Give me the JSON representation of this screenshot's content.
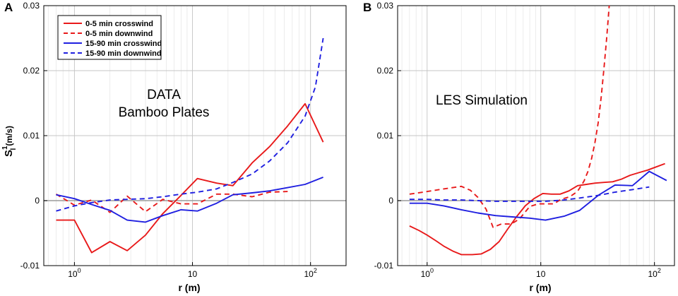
{
  "chart_data": [
    {
      "type": "line",
      "panel": "A",
      "xscale": "log",
      "xlim": [
        0.55,
        200
      ],
      "ylim": [
        -0.01,
        0.03
      ],
      "xlabel": "r (m)",
      "ylabel": "S",
      "ylabel_sup": "1",
      "ylabel_sub": "l",
      "ylabel_unit": "(m/s)",
      "xticks": [
        {
          "value": 1,
          "base": "10",
          "exp": "0"
        },
        {
          "value": 10,
          "label": "10"
        },
        {
          "value": 100,
          "base": "10",
          "exp": "2"
        }
      ],
      "yticks": [
        {
          "value": -0.01,
          "label": "-0.01"
        },
        {
          "value": 0,
          "label": "0"
        },
        {
          "value": 0.01,
          "label": "0.01"
        },
        {
          "value": 0.02,
          "label": "0.02"
        },
        {
          "value": 0.03,
          "label": "0.03"
        }
      ],
      "grid": true,
      "legend_position": "top-left",
      "annotations": [
        "DATA",
        "Bamboo Plates"
      ],
      "series": [
        {
          "name": "0-5 min crosswind",
          "color": "#e8191a",
          "dash": false,
          "x": [
            0.7,
            1.0,
            1.4,
            2.0,
            2.8,
            4.0,
            5.6,
            8.0,
            11.0,
            16.0,
            22.0,
            32.0,
            45.0,
            64.0,
            90.0,
            128.0
          ],
          "y": [
            -0.003,
            -0.003,
            -0.008,
            -0.0063,
            -0.0077,
            -0.0053,
            -0.002,
            0.0008,
            0.0034,
            0.0027,
            0.0023,
            0.0058,
            0.0083,
            0.0115,
            0.0149,
            0.009
          ]
        },
        {
          "name": "0-5 min downwind",
          "color": "#e8191a",
          "dash": true,
          "x": [
            0.7,
            1.0,
            1.4,
            2.0,
            2.8,
            4.0,
            5.6,
            8.0,
            11.0,
            16.0,
            22.0,
            32.0,
            45.0,
            64.0
          ],
          "y": [
            0.001,
            -0.0007,
            0.0001,
            -0.0018,
            0.0007,
            -0.0017,
            0.0002,
            -0.0005,
            -0.0005,
            0.001,
            0.001,
            0.0006,
            0.0013,
            0.0014
          ]
        },
        {
          "name": "15-90 min crosswind",
          "color": "#1f1fe0",
          "dash": false,
          "x": [
            0.7,
            1.0,
            1.4,
            2.0,
            2.8,
            4.0,
            5.6,
            8.0,
            11.0,
            16.0,
            22.0,
            32.0,
            45.0,
            64.0,
            90.0,
            128.0
          ],
          "y": [
            0.0009,
            0.0003,
            -0.0006,
            -0.0015,
            -0.003,
            -0.0033,
            -0.0023,
            -0.0014,
            -0.0016,
            -0.0004,
            0.0009,
            0.0012,
            0.0015,
            0.002,
            0.0025,
            0.0036
          ]
        },
        {
          "name": "15-90 min downwind",
          "color": "#1f1fe0",
          "dash": true,
          "x": [
            0.7,
            1.0,
            1.4,
            2.0,
            2.8,
            4.0,
            5.6,
            8.0,
            11.0,
            16.0,
            22.0,
            32.0,
            45.0,
            64.0,
            90.0,
            110.0,
            128.0
          ],
          "y": [
            -0.0016,
            -0.0008,
            -0.0003,
            0.0001,
            0.0002,
            0.0003,
            0.0006,
            0.001,
            0.0013,
            0.0018,
            0.0028,
            0.0041,
            0.0061,
            0.0089,
            0.013,
            0.0175,
            0.025
          ]
        }
      ]
    },
    {
      "type": "line",
      "panel": "B",
      "xscale": "log",
      "xlim": [
        0.55,
        150
      ],
      "ylim": [
        -0.01,
        0.03
      ],
      "xlabel": "r (m)",
      "ylabel": "",
      "xticks": [
        {
          "value": 1,
          "base": "10",
          "exp": "0"
        },
        {
          "value": 10,
          "label": "10"
        },
        {
          "value": 100,
          "base": "10",
          "exp": "2"
        }
      ],
      "yticks": [
        {
          "value": -0.01,
          "label": "-0.01"
        },
        {
          "value": 0,
          "label": "0"
        },
        {
          "value": 0.01,
          "label": "0.01"
        },
        {
          "value": 0.02,
          "label": "0.02"
        },
        {
          "value": 0.03,
          "label": "0.03"
        }
      ],
      "grid": true,
      "annotations": [
        "LES Simulation"
      ],
      "series": [
        {
          "name": "0-5 min crosswind",
          "color": "#e8191a",
          "dash": false,
          "x": [
            0.7,
            0.85,
            1.0,
            1.2,
            1.4,
            1.7,
            2.0,
            2.5,
            3.0,
            3.6,
            4.3,
            5.1,
            6.1,
            7.3,
            8.7,
            10.4,
            12.4,
            14.8,
            17.7,
            21.1,
            25.2,
            30.1,
            35.9,
            42.9,
            51.2,
            61.1,
            72.9,
            87.0,
            103.8,
            123.9
          ],
          "y": [
            -0.0039,
            -0.0046,
            -0.0053,
            -0.0062,
            -0.007,
            -0.0078,
            -0.0083,
            -0.0083,
            -0.0082,
            -0.0075,
            -0.0063,
            -0.0044,
            -0.0025,
            -0.0008,
            0.0003,
            0.0011,
            0.001,
            0.001,
            0.0015,
            0.0023,
            0.0025,
            0.0027,
            0.0028,
            0.0029,
            0.0033,
            0.0039,
            0.0043,
            0.0047,
            0.0052,
            0.0057
          ]
        },
        {
          "name": "0-5 min downwind",
          "color": "#e8191a",
          "dash": true,
          "x": [
            0.7,
            1.0,
            1.4,
            2.0,
            2.4,
            2.8,
            3.3,
            3.8,
            4.5,
            5.5,
            6.5,
            8.0,
            9.5,
            11.0,
            13.0,
            15.0,
            18.0,
            21.0,
            24.0,
            26.0,
            28.0,
            30.0,
            32.0,
            34.0,
            36.0,
            38.0,
            40.0
          ],
          "y": [
            0.001,
            0.0014,
            0.0018,
            0.0022,
            0.0016,
            0.0005,
            -0.0013,
            -0.0041,
            -0.0036,
            -0.0036,
            -0.0028,
            -0.0009,
            -0.0005,
            -0.0005,
            -0.0005,
            0.0002,
            0.0006,
            0.0014,
            0.003,
            0.0045,
            0.0065,
            0.009,
            0.012,
            0.016,
            0.0205,
            0.025,
            0.03
          ]
        },
        {
          "name": "15-90 min crosswind",
          "color": "#1f1fe0",
          "dash": false,
          "x": [
            0.7,
            1.0,
            1.4,
            2.0,
            2.8,
            4.0,
            5.6,
            8.0,
            11.0,
            16.0,
            22.0,
            32.0,
            45.0,
            64.0,
            90.0,
            128.0
          ],
          "y": [
            -0.0004,
            -0.0004,
            -0.0008,
            -0.0014,
            -0.0019,
            -0.0023,
            -0.0025,
            -0.0027,
            -0.003,
            -0.0024,
            -0.0015,
            0.0008,
            0.0024,
            0.0023,
            0.0045,
            0.0031
          ]
        },
        {
          "name": "15-90 min downwind",
          "color": "#1f1fe0",
          "dash": true,
          "x": [
            0.7,
            1.0,
            1.4,
            2.0,
            2.8,
            4.0,
            5.6,
            8.0,
            11.0,
            16.0,
            22.0,
            32.0,
            45.0,
            64.0,
            90.0
          ],
          "y": [
            0.0002,
            0.0002,
            0.0001,
            0.0001,
            0.0,
            -0.0001,
            -0.0001,
            -0.0001,
            -0.0001,
            0.0001,
            0.0004,
            0.0008,
            0.0013,
            0.0017,
            0.0021
          ]
        }
      ]
    }
  ]
}
